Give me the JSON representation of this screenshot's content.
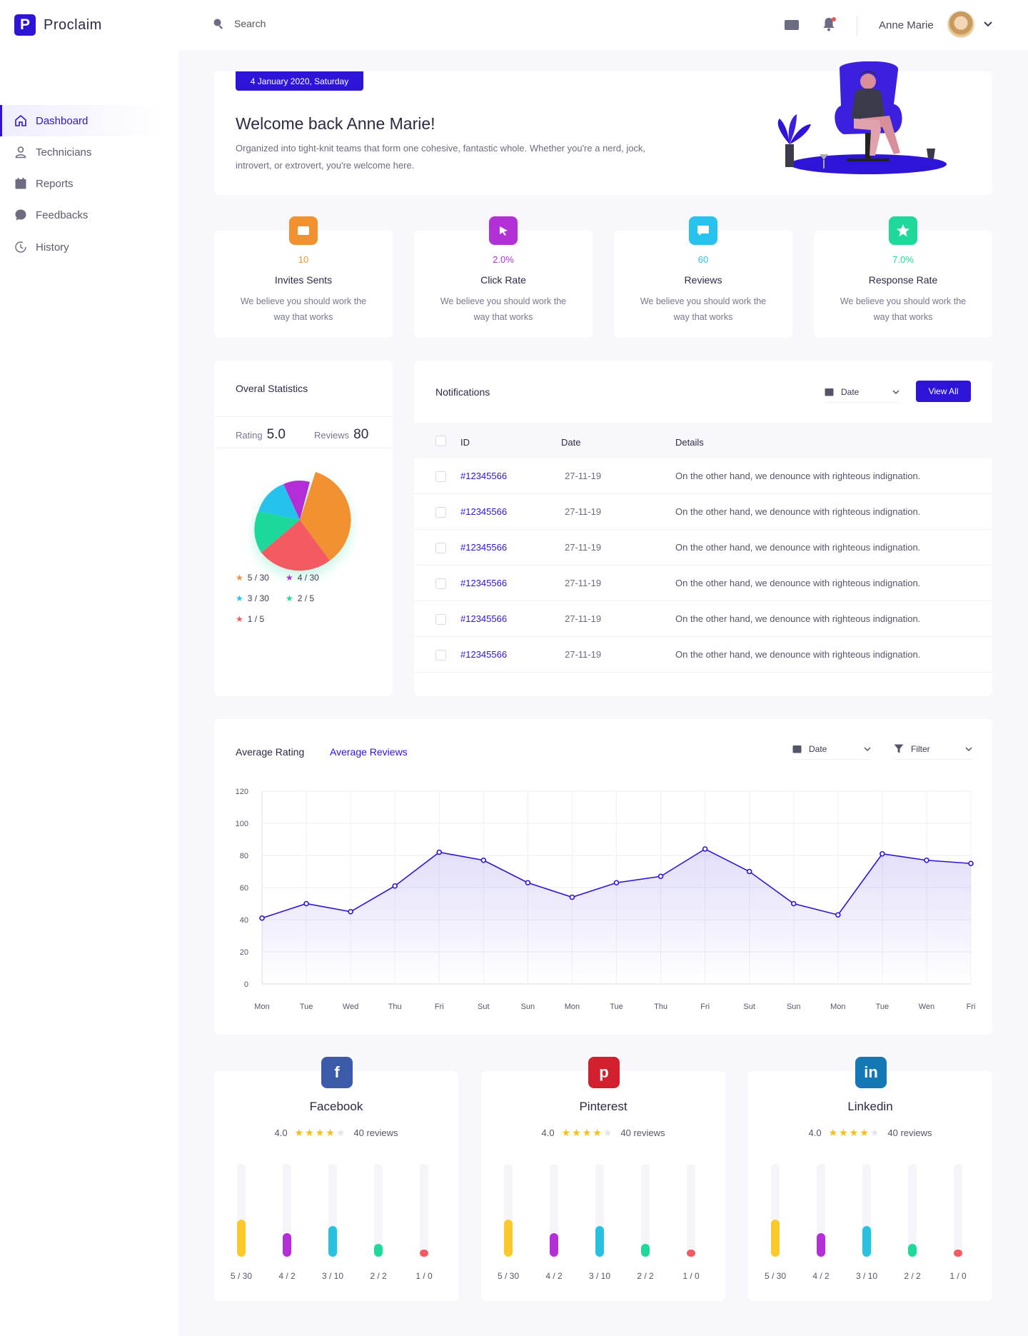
{
  "app": {
    "name": "Proclaim",
    "logo_letter": "P"
  },
  "search": {
    "placeholder": "Search"
  },
  "user": {
    "name": "Anne Marie"
  },
  "sidebar": {
    "items": [
      {
        "label": "Dashboard",
        "icon": "home-icon",
        "active": true
      },
      {
        "label": "Technicians",
        "icon": "user-icon"
      },
      {
        "label": "Reports",
        "icon": "calendar-icon"
      },
      {
        "label": "Feedbacks",
        "icon": "chat-icon"
      },
      {
        "label": "History",
        "icon": "history-icon"
      }
    ]
  },
  "welcome": {
    "date": "4 January 2020, Saturday",
    "title": "Welcome back Anne Marie!",
    "text": "Organized into tight-knit teams that form one cohesive, fantastic whole. Whether you're a nerd, jock, introvert, or extrovert, you're welcome here."
  },
  "stats": [
    {
      "value": "10",
      "label": "Invites Sents",
      "desc": "We believe you should work the way that works",
      "color": "#f29130",
      "icon": "mail-icon"
    },
    {
      "value": "2.0%",
      "label": "Click Rate",
      "desc": "We believe you should work the way that works",
      "color": "#b32fd6",
      "icon": "cursor-icon"
    },
    {
      "value": "60",
      "label": "Reviews",
      "desc": "We believe you should work the way that works",
      "color": "#28c2ee",
      "icon": "message-icon"
    },
    {
      "value": "7.0%",
      "label": "Response Rate",
      "desc": "We believe you should work the way that works",
      "color": "#1fd99b",
      "icon": "star-badge-icon"
    }
  ],
  "overall": {
    "title": "Overal Statistics",
    "rating_label": "Rating",
    "rating_value": "5.0",
    "reviews_label": "Reviews",
    "reviews_value": "80",
    "legend": [
      {
        "label": "5 / 30",
        "color": "#f29130"
      },
      {
        "label": "4 / 30",
        "color": "#b32fd6"
      },
      {
        "label": "3 / 30",
        "color": "#28c2ee"
      },
      {
        "label": "2 / 5",
        "color": "#1fd99b"
      },
      {
        "label": "1 / 5",
        "color": "#f35a62"
      }
    ]
  },
  "notifications": {
    "title": "Notifications",
    "date_filter": "Date",
    "view_all": "View All",
    "columns": [
      "ID",
      "Date",
      "Details"
    ],
    "rows": [
      {
        "id": "#12345566",
        "date": "27-11-19",
        "details": "On the other hand, we denounce with righteous indignation."
      },
      {
        "id": "#12345566",
        "date": "27-11-19",
        "details": "On the other hand, we denounce with righteous indignation."
      },
      {
        "id": "#12345566",
        "date": "27-11-19",
        "details": "On the other hand, we denounce with righteous indignation."
      },
      {
        "id": "#12345566",
        "date": "27-11-19",
        "details": "On the other hand, we denounce with righteous indignation."
      },
      {
        "id": "#12345566",
        "date": "27-11-19",
        "details": "On the other hand, we denounce with righteous indignation."
      },
      {
        "id": "#12345566",
        "date": "27-11-19",
        "details": "On the other hand, we denounce with righteous indignation."
      }
    ]
  },
  "rating_chart": {
    "tab_active": "Average Rating",
    "tab_other": "Average Reviews",
    "date_filter": "Date",
    "filter": "Filter"
  },
  "chart_data": {
    "type": "area",
    "categories": [
      "Mon",
      "Tue",
      "Wed",
      "Thu",
      "Fri",
      "Sut",
      "Sun",
      "Mon",
      "Tue",
      "Thu",
      "Fri",
      "Sut",
      "Sun",
      "Mon",
      "Tue",
      "Wen",
      "Fri"
    ],
    "series": [
      {
        "values": [
          41,
          50,
          45,
          61,
          82,
          77,
          63,
          54,
          63,
          67,
          84,
          70,
          50,
          43,
          81,
          77,
          75
        ]
      }
    ],
    "yticks": [
      0,
      20,
      40,
      60,
      80,
      100,
      120
    ],
    "ylim": [
      0,
      120
    ],
    "grid": true,
    "line_color": "#2d14d6"
  },
  "socials": [
    {
      "name": "Facebook",
      "rating": "4.0",
      "stars": 4,
      "reviews": "40 reviews",
      "color": "#3b5aa8",
      "icon": "facebook-icon",
      "glyph": "f",
      "bars": [
        {
          "label": "5 / 30",
          "fraction": 0.4,
          "color": "#fbc92c"
        },
        {
          "label": "4 / 2",
          "fraction": 0.25,
          "color": "#b32fd6"
        },
        {
          "label": "3 / 10",
          "fraction": 0.33,
          "color": "#28c2e0"
        },
        {
          "label": "2 / 2",
          "fraction": 0.14,
          "color": "#1fd99b"
        },
        {
          "label": "1 / 0",
          "fraction": 0.08,
          "color": "#f35a62"
        }
      ]
    },
    {
      "name": "Pinterest",
      "rating": "4.0",
      "stars": 4,
      "reviews": "40 reviews",
      "color": "#d3202e",
      "icon": "pinterest-icon",
      "glyph": "p",
      "bars": [
        {
          "label": "5 / 30",
          "fraction": 0.4,
          "color": "#fbc92c"
        },
        {
          "label": "4 / 2",
          "fraction": 0.25,
          "color": "#b32fd6"
        },
        {
          "label": "3 / 10",
          "fraction": 0.33,
          "color": "#28c2e0"
        },
        {
          "label": "2 / 2",
          "fraction": 0.14,
          "color": "#1fd99b"
        },
        {
          "label": "1 / 0",
          "fraction": 0.08,
          "color": "#f35a62"
        }
      ]
    },
    {
      "name": "Linkedin",
      "rating": "4.0",
      "stars": 4,
      "reviews": "40 reviews",
      "color": "#1478b4",
      "icon": "linkedin-icon",
      "glyph": "in",
      "bars": [
        {
          "label": "5 / 30",
          "fraction": 0.4,
          "color": "#fbc92c"
        },
        {
          "label": "4 / 2",
          "fraction": 0.25,
          "color": "#b32fd6"
        },
        {
          "label": "3 / 10",
          "fraction": 0.33,
          "color": "#28c2e0"
        },
        {
          "label": "2 / 2",
          "fraction": 0.14,
          "color": "#1fd99b"
        },
        {
          "label": "1 / 0",
          "fraction": 0.08,
          "color": "#f35a62"
        }
      ]
    }
  ]
}
